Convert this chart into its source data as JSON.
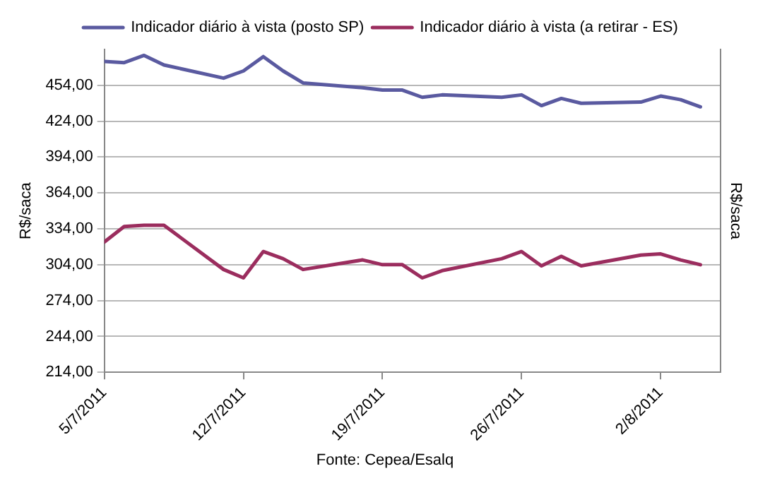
{
  "chart_data": {
    "type": "line",
    "ylabel": "R$/saca",
    "y2label": "R$/saca",
    "legend": "top",
    "grid": "y",
    "line_style": "solid",
    "marker": "none",
    "x": [
      "2011-07-05",
      "2011-07-06",
      "2011-07-07",
      "2011-07-08",
      "2011-07-11",
      "2011-07-12",
      "2011-07-13",
      "2011-07-14",
      "2011-07-15",
      "2011-07-18",
      "2011-07-19",
      "2011-07-20",
      "2011-07-21",
      "2011-07-22",
      "2011-07-25",
      "2011-07-26",
      "2011-07-27",
      "2011-07-28",
      "2011-07-29",
      "2011-08-01",
      "2011-08-02",
      "2011-08-03",
      "2011-08-04"
    ],
    "xlim": [
      "2011-07-05",
      "2011-08-05"
    ],
    "xticks": [
      {
        "value": "2011-07-05",
        "label": "5/7/2011"
      },
      {
        "value": "2011-07-12",
        "label": "12/7/2011"
      },
      {
        "value": "2011-07-19",
        "label": "19/7/2011"
      },
      {
        "value": "2011-07-26",
        "label": "26/7/2011"
      },
      {
        "value": "2011-08-02",
        "label": "2/8/2011"
      }
    ],
    "ylim": [
      214,
      484
    ],
    "yticks": [
      {
        "value": 214,
        "label": "214,00"
      },
      {
        "value": 244,
        "label": "244,00"
      },
      {
        "value": 274,
        "label": "274,00"
      },
      {
        "value": 304,
        "label": "304,00"
      },
      {
        "value": 334,
        "label": "334,00"
      },
      {
        "value": 364,
        "label": "364,00"
      },
      {
        "value": 394,
        "label": "394,00"
      },
      {
        "value": 424,
        "label": "424,00"
      },
      {
        "value": 454,
        "label": "454,00"
      }
    ],
    "series": [
      {
        "name": "Indicador diário à vista (posto SP)",
        "color": "#5a5aa0",
        "values": [
          474,
          473,
          479,
          471,
          460,
          466,
          478,
          466,
          456,
          452,
          450,
          450,
          444,
          446,
          444,
          446,
          437,
          443,
          439,
          440,
          445,
          442,
          436
        ]
      },
      {
        "name": "Indicador diário à vista (a retirar - ES)",
        "color": "#9b2d5e",
        "values": [
          323,
          336,
          337,
          337,
          300,
          293,
          315,
          309,
          300,
          308,
          304,
          304,
          293,
          299,
          309,
          315,
          303,
          311,
          303,
          312,
          313,
          308,
          304
        ]
      }
    ],
    "annotations": [
      "Fonte: Cepea/Esalq"
    ]
  }
}
